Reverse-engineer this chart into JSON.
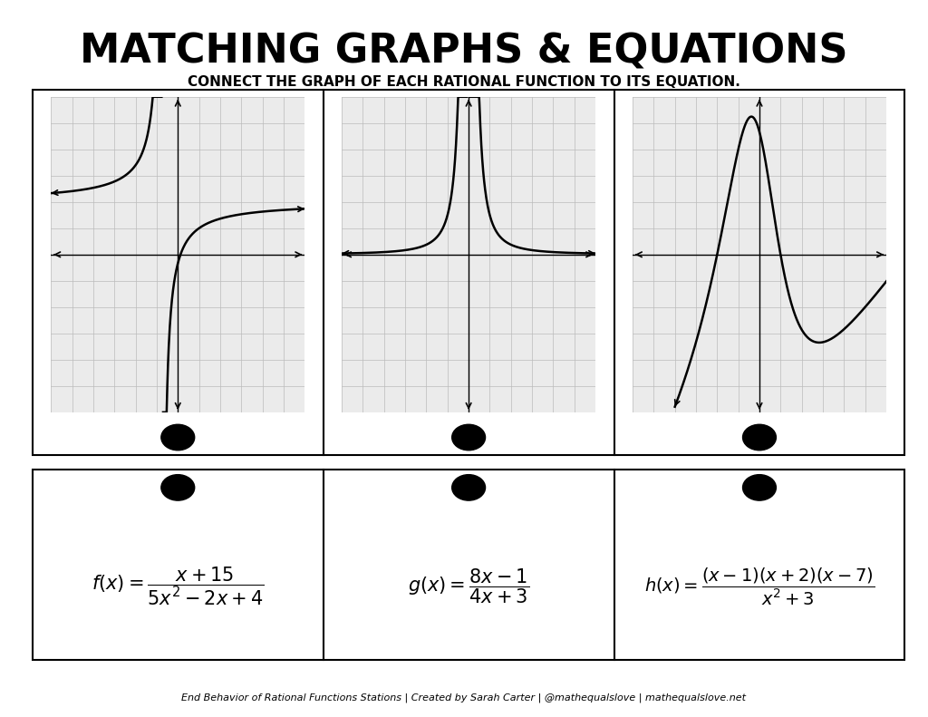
{
  "title": "MATCHING GRAPHS & EQUATIONS",
  "subtitle": "CONNECT THE GRAPH OF EACH RATIONAL FUNCTION TO ITS EQUATION.",
  "footer": "End Behavior of Rational Functions Stations | Created by Sarah Carter | @mathequalslove | mathequalslove.net",
  "bg_color": "#ffffff",
  "grid_color": "#cccccc",
  "graph_bg": "#f0f0f0",
  "formulas": [
    "f(x) = \\dfrac{x + 15}{5x^2 - 2x + 4}",
    "g(x) = \\dfrac{8x - 1}{4x + 3}",
    "h(x) = \\dfrac{(x-1)(x+2)(x-7)}{x^2 + 3}"
  ]
}
